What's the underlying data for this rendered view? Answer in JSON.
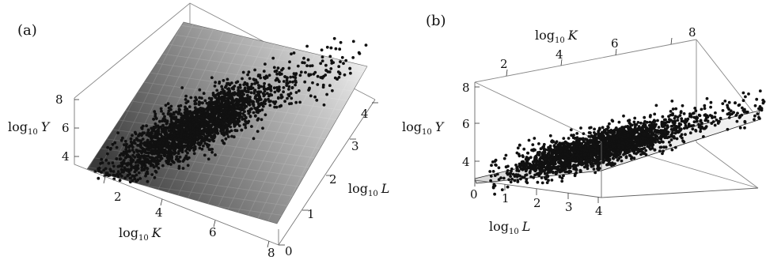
{
  "chart_data": [
    {
      "type": "scatter",
      "panel_label": "(a)",
      "xlabel": {
        "base": "log",
        "sub": "10",
        "var": "K"
      },
      "ylabel": {
        "base": "log",
        "sub": "10",
        "var": "L"
      },
      "zlabel": {
        "base": "log",
        "sub": "10",
        "var": "Y"
      },
      "xticks": [
        "2",
        "4",
        "6",
        "8"
      ],
      "yticks": [
        "0",
        "1",
        "2",
        "3",
        "4"
      ],
      "zticks": [
        "4",
        "6",
        "8"
      ],
      "xlim": [
        1,
        8
      ],
      "ylim": [
        0,
        4.3
      ],
      "zlim": [
        3.4,
        8.2
      ],
      "surface": "fitted plane",
      "points": {
        "count": 2400,
        "distribution": "log10 K mostly 2.5–5.5 (tail to 8); log10 L ≈ 0.55·(log10 K − 1) ± 0.45; log10 Y ≈ 3.1 + 0.45·log10 K + 0.25·log10 L ± 0.15"
      }
    },
    {
      "type": "scatter",
      "panel_label": "(b)",
      "xlabel": {
        "base": "log",
        "sub": "10",
        "var": "L"
      },
      "ylabel": {
        "base": "log",
        "sub": "10",
        "var": "K"
      },
      "zlabel": {
        "base": "log",
        "sub": "10",
        "var": "Y"
      },
      "xticks": [
        "0",
        "1",
        "2",
        "3",
        "4"
      ],
      "yticks": [
        "2",
        "4",
        "6",
        "8"
      ],
      "zticks": [
        "4",
        "6",
        "8"
      ],
      "xlim": [
        0,
        4.3
      ],
      "ylim": [
        1,
        8
      ],
      "zlim": [
        3.4,
        8.2
      ],
      "surface": "fitted plane (edge-on view)",
      "points": {
        "count": 2400,
        "distribution": "same data viewed edge-on along the fitted plane"
      }
    }
  ]
}
